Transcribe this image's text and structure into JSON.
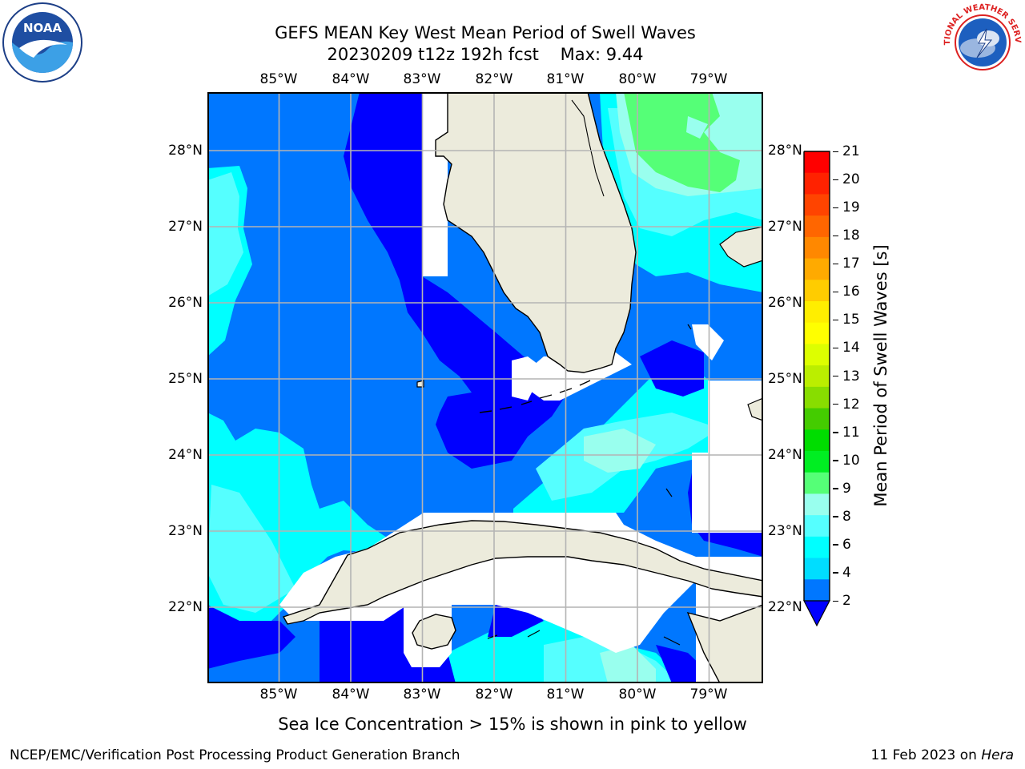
{
  "header": {
    "title": "GEFS MEAN Key West Mean Period of Swell Waves",
    "subtitle": "20230209 t12z 192h fcst    Max: 9.44"
  },
  "logos": {
    "left": {
      "text": "NOAA"
    },
    "right": {
      "text": "NATIONAL WEATHER SERVICE"
    }
  },
  "map": {
    "lon_labels": [
      "85°W",
      "84°W",
      "83°W",
      "82°W",
      "81°W",
      "80°W",
      "79°W"
    ],
    "lat_labels": [
      "28°N",
      "27°N",
      "26°N",
      "25°N",
      "24°N",
      "23°N",
      "22°N"
    ],
    "lon_range": [
      -86.0,
      -78.25
    ],
    "lat_range": [
      21.0,
      28.75
    ],
    "colors": {
      "land": "#ecebdc",
      "grid": "#b4b4b4",
      "coast": "#000000"
    }
  },
  "colorbar": {
    "label": "Mean Period of Swell Waves [s]",
    "ticks": [
      "21",
      "20",
      "19",
      "18",
      "17",
      "16",
      "15",
      "14",
      "13",
      "12",
      "11",
      "10",
      "9",
      "8",
      "6",
      "4",
      "2"
    ],
    "bands_top_to_bottom": [
      "#ff0000",
      "#ff2200",
      "#ff4400",
      "#ff6600",
      "#ff8800",
      "#ffaa00",
      "#ffcc00",
      "#ffee00",
      "#ffff00",
      "#ddff00",
      "#bbee00",
      "#88dd00",
      "#44cc00",
      "#00dd00",
      "#00ee22",
      "#55ff77",
      "#99ffee",
      "#55ffff",
      "#00ffff",
      "#00ddff",
      "#0077ff"
    ],
    "extend_color": "#0000ff"
  },
  "footer": {
    "sea_ice_note": "Sea Ice Concentration > 15% is shown in pink to yellow",
    "credit": "NCEP/EMC/Verification Post Processing Product Generation Branch",
    "date": "11 Feb 2023 on ",
    "machine": "Hera"
  }
}
